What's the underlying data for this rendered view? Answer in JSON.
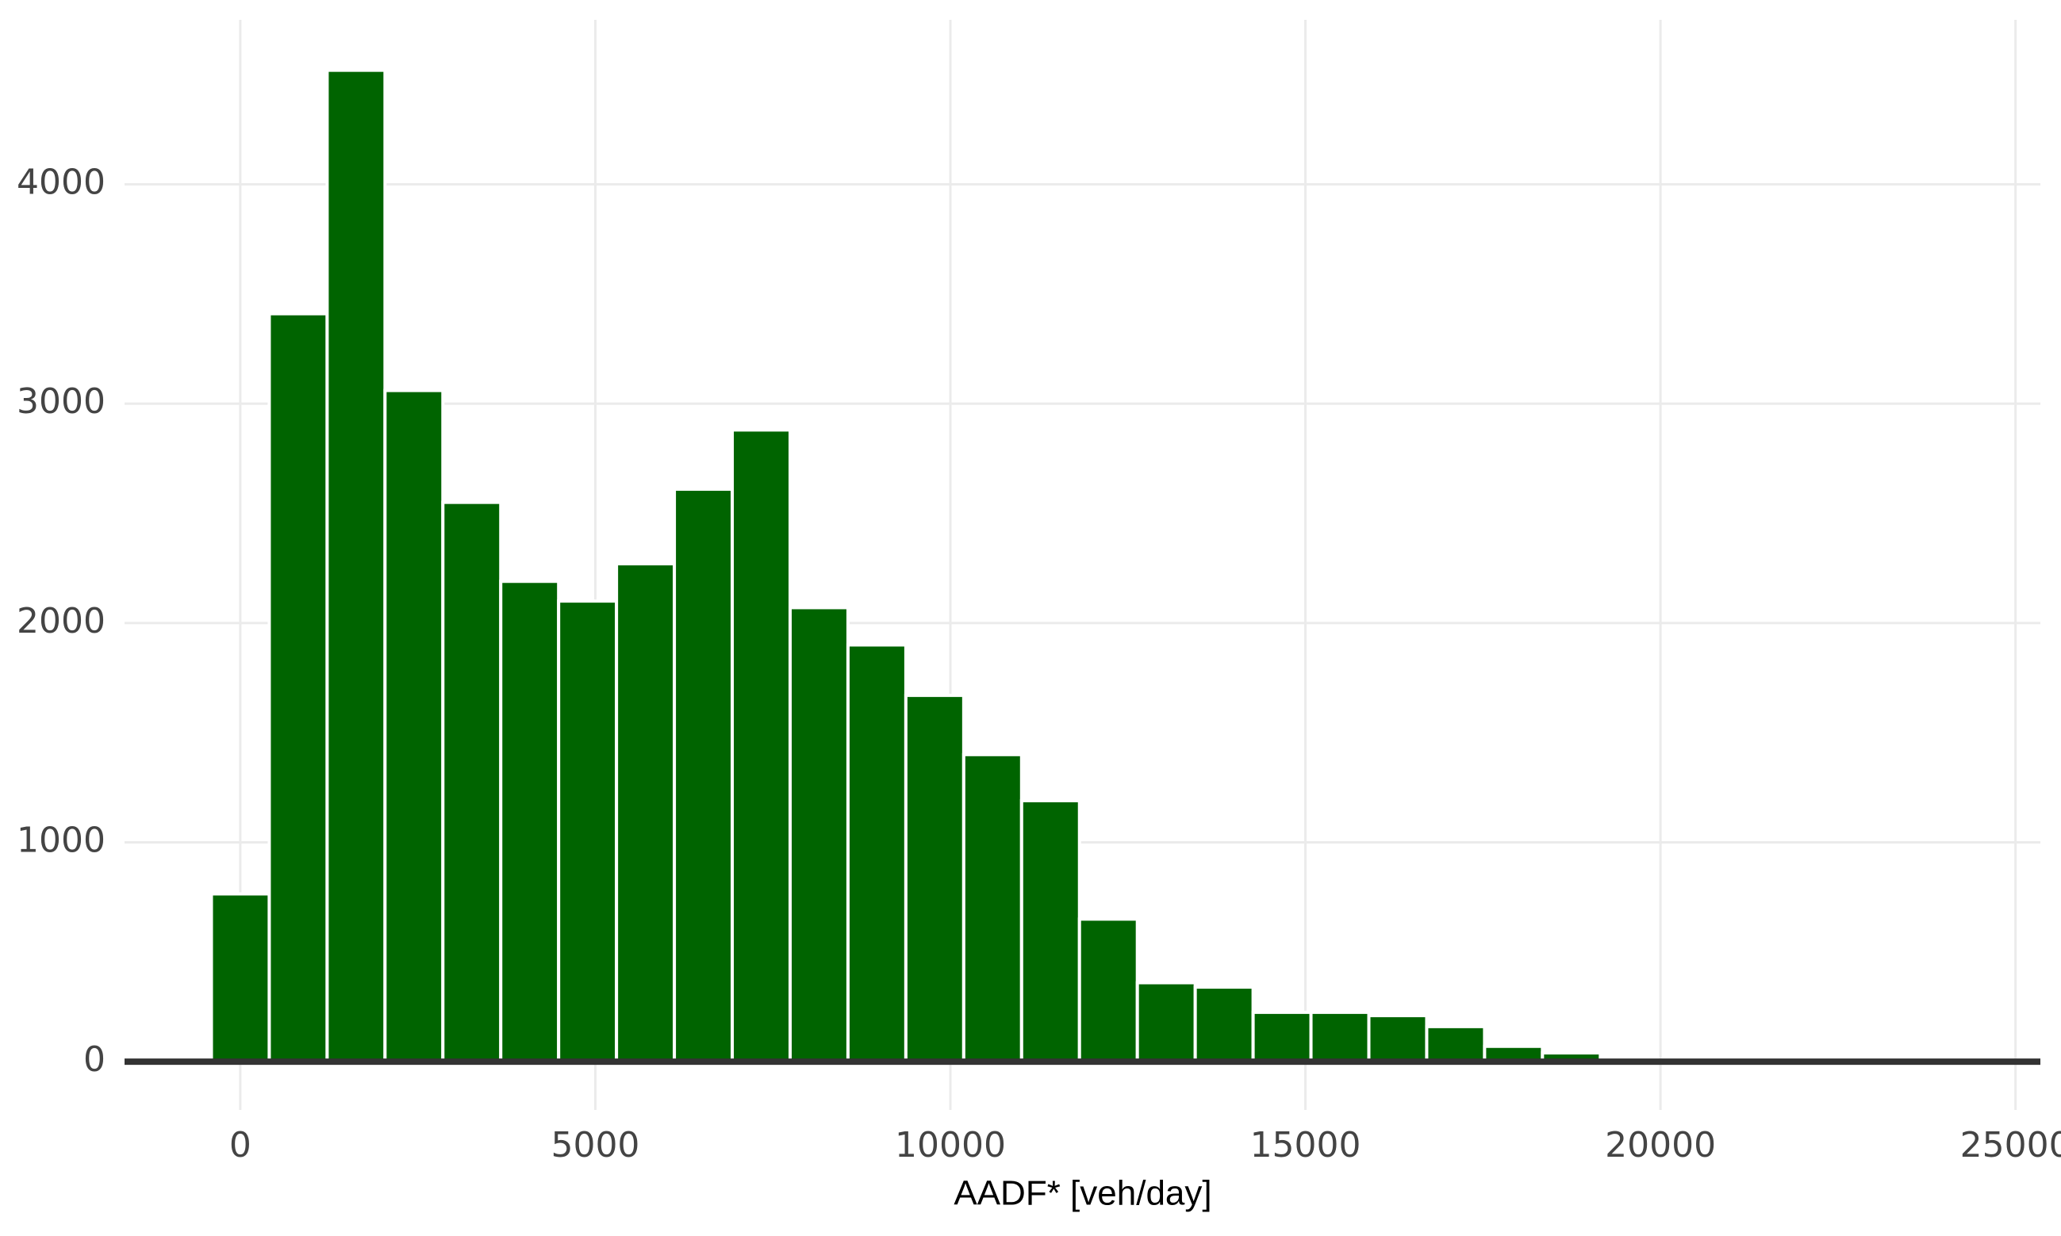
{
  "chart_data": {
    "type": "histogram",
    "x_label": "AADF* [veh/day]",
    "bins": [
      -407,
      408,
      1223,
      2038,
      2853,
      3668,
      4483,
      5298,
      6113,
      6928,
      7743,
      8558,
      9373,
      10188,
      11003,
      11818,
      12633,
      13448,
      14263,
      15078,
      15893,
      16708,
      17523,
      18338,
      19153,
      19968,
      20783,
      21598,
      22413,
      23228,
      24043
    ],
    "values": [
      765,
      3410,
      4520,
      3060,
      2550,
      2190,
      2100,
      2270,
      2610,
      2880,
      2070,
      1900,
      1670,
      1400,
      1190,
      650,
      360,
      340,
      225,
      225,
      210,
      160,
      70,
      40,
      5,
      3,
      2,
      1,
      1,
      1
    ],
    "color": "#006400",
    "xlim": [
      -1630,
      25350
    ],
    "ylim": [
      -220,
      4750
    ],
    "xticks": [
      0,
      5000,
      10000,
      15000,
      20000,
      25000
    ],
    "yticks": [
      0,
      1000,
      2000,
      3000,
      4000
    ],
    "grid": true
  }
}
